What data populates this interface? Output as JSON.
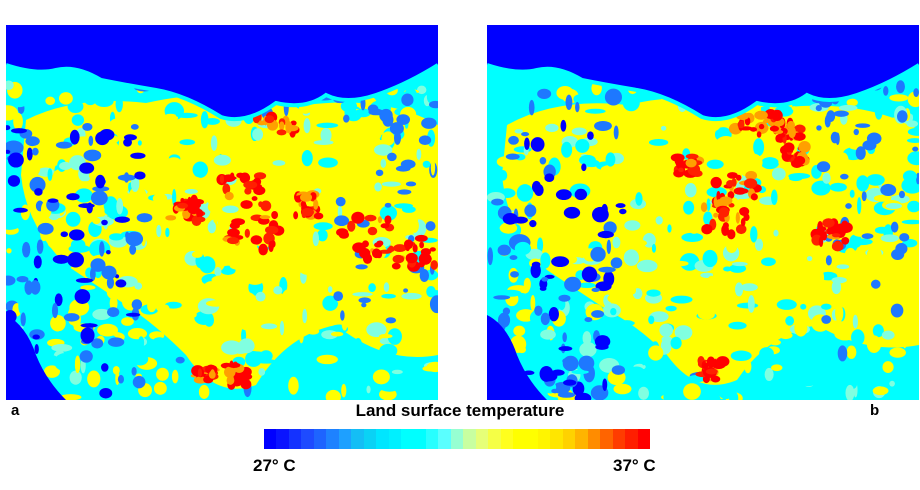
{
  "panels": [
    {
      "id": "a",
      "label": "a"
    },
    {
      "id": "b",
      "label": "b"
    }
  ],
  "legend": {
    "title": "Land surface temperature",
    "min_label": "27° C",
    "max_label": "37° C",
    "colormap": [
      "#0000ff",
      "#0a14ff",
      "#1432ff",
      "#1e4bff",
      "#1e64ff",
      "#1e82ff",
      "#1ea0ff",
      "#14bef5",
      "#0ad2f5",
      "#00e6ff",
      "#00f0ff",
      "#00ffff",
      "#00ffff",
      "#28ffff",
      "#5affff",
      "#96ffd2",
      "#c8ffa0",
      "#e6ff78",
      "#f5ff46",
      "#ffff1e",
      "#ffff00",
      "#ffff00",
      "#fff500",
      "#ffe600",
      "#ffd200",
      "#ffb400",
      "#ff8c00",
      "#ff6400",
      "#ff3c00",
      "#ff1e00",
      "#ff0000"
    ]
  },
  "map_colors": {
    "water": "#0000ff",
    "cool": "#1e78ff",
    "cyan": "#00ffff",
    "light_cyan": "#80ffe0",
    "yellow": "#ffff00",
    "orange": "#ffa000",
    "hot": "#ff2000",
    "red": "#ff0000"
  }
}
